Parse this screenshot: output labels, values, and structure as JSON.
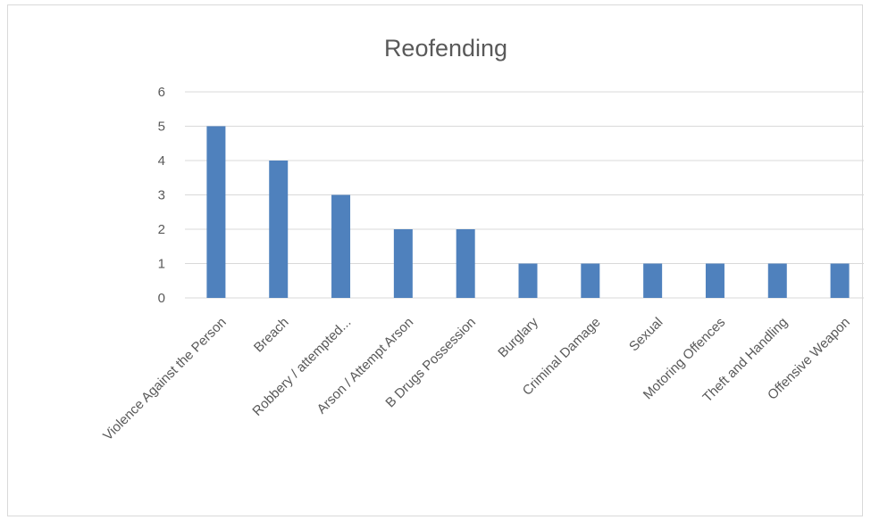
{
  "chart_data": {
    "type": "bar",
    "title": "Reofending",
    "xlabel": "",
    "ylabel": "",
    "categories": [
      "Violence Against the Person",
      "Breach",
      "Robbery / attempted...",
      "Arson / Attempt Arson",
      "B Drugs Possession",
      "Burglary",
      "Criminal Damage",
      "Sexual",
      "Motoring Offences",
      "Theft and Handling",
      "Offensive Weapon"
    ],
    "values": [
      5,
      4,
      3,
      2,
      2,
      1,
      1,
      1,
      1,
      1,
      1
    ],
    "ylim": [
      0,
      6
    ],
    "yticks": [
      0,
      1,
      2,
      3,
      4,
      5,
      6
    ],
    "grid": true,
    "legend": "none",
    "colors": {
      "bar": "#4f81bd",
      "grid": "#d9d9d9",
      "text": "#595959",
      "border": "#d9d9d9"
    }
  }
}
